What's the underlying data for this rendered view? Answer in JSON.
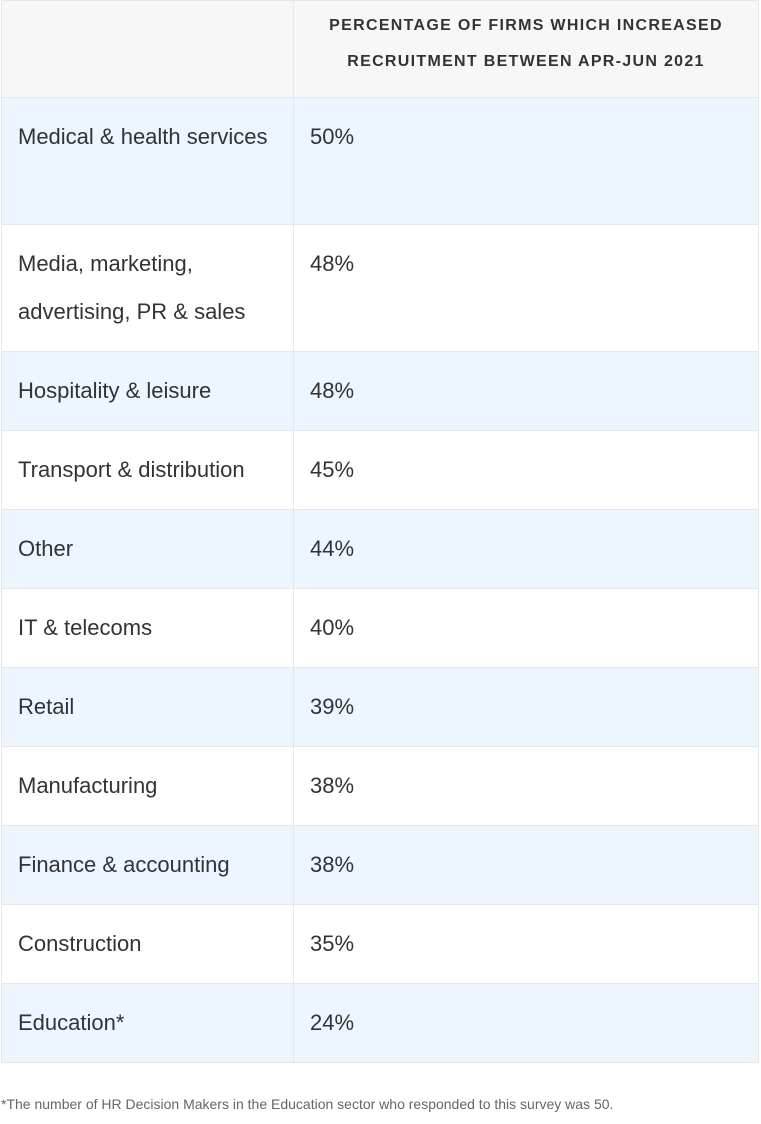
{
  "table": {
    "headers": [
      "",
      "PERCENTAGE OF FIRMS WHICH INCREASED RECRUITMENT BETWEEN APR-JUN 2021"
    ],
    "rows": [
      {
        "sector": "Medical & health services",
        "value": "50%"
      },
      {
        "sector": "Media, marketing, advertising, PR & sales",
        "value": "48%"
      },
      {
        "sector": "Hospitality & leisure",
        "value": "48%"
      },
      {
        "sector": "Transport & distribution",
        "value": "45%"
      },
      {
        "sector": "Other",
        "value": "44%"
      },
      {
        "sector": "IT & telecoms",
        "value": "40%"
      },
      {
        "sector": "Retail",
        "value": "39%"
      },
      {
        "sector": "Manufacturing",
        "value": "38%"
      },
      {
        "sector": "Finance & accounting",
        "value": "38%"
      },
      {
        "sector": "Construction",
        "value": "35%"
      },
      {
        "sector": "Education*",
        "value": "24%"
      }
    ]
  },
  "footnote": "*The number of HR Decision Makers in the Education sector who responded to this survey was 50.",
  "colors": {
    "header_bg": "#f7f7f7",
    "row_shade": "#edf5ff",
    "row_plain": "#ffffff",
    "border": "#e6e6e6",
    "text": "#333333",
    "footnote_text": "#666666"
  }
}
